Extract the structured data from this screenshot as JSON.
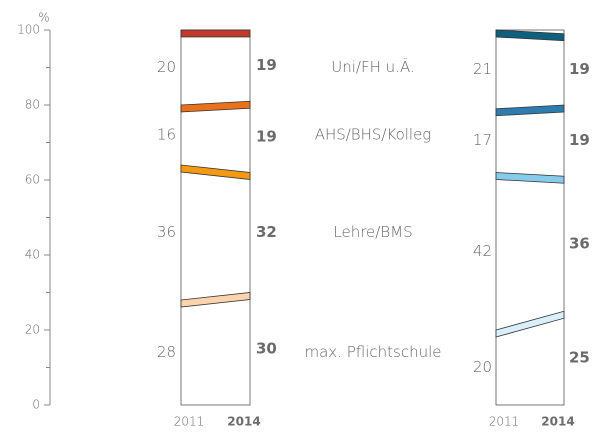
{
  "chart_data": {
    "type": "slope-stack",
    "y_label": "%",
    "ylim": [
      0,
      100
    ],
    "yticks": [
      0,
      20,
      40,
      60,
      80,
      100
    ],
    "yticks_minor": [
      10,
      30,
      50,
      70,
      90
    ],
    "x": [
      "2011",
      "2014"
    ],
    "categories": [
      "max. Pflichtschule",
      "Lehre/BMS",
      "AHS/BHS/Kolleg",
      "Uni/FH u.Ä."
    ],
    "panels": [
      {
        "values": [
          [
            28,
            30
          ],
          [
            36,
            32
          ],
          [
            16,
            19
          ],
          [
            20,
            19
          ]
        ],
        "colors": [
          "#fbd3ad",
          "#f39a12",
          "#ea7019",
          "#c0392b"
        ]
      },
      {
        "values": [
          [
            20,
            25
          ],
          [
            42,
            36
          ],
          [
            17,
            19
          ],
          [
            21,
            19
          ]
        ],
        "colors": [
          "#d9eff9",
          "#86cbe9",
          "#2e7cae",
          "#0f607c"
        ]
      }
    ]
  }
}
